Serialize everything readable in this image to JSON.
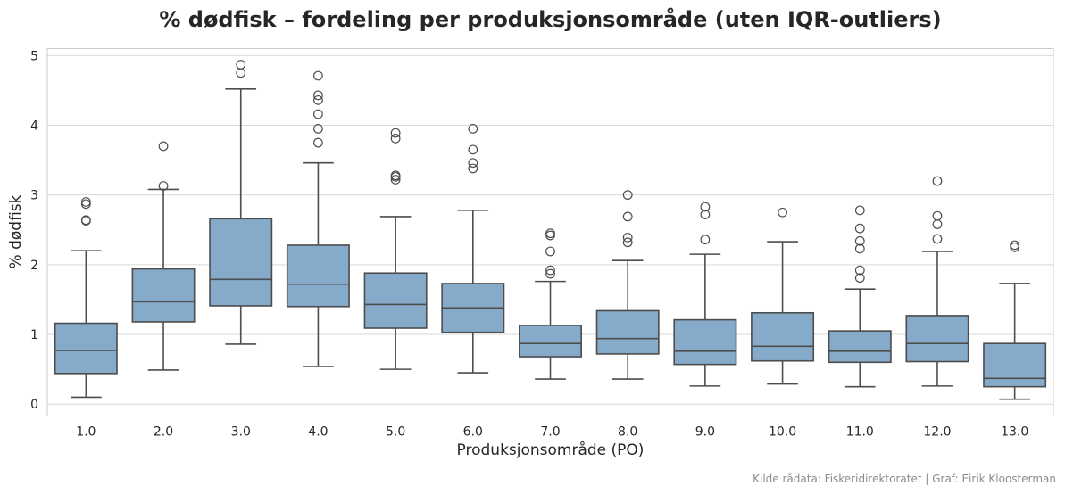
{
  "chart_data": {
    "type": "boxplot",
    "title": "% dødfisk – fordeling per produksjonsområde (uten IQR-outliers)",
    "xlabel": "Produksjonsområde (PO)",
    "ylabel": "% dødfisk",
    "source": "Kilde rådata: Fiskeridirektoratet | Graf: Eirik Kloosterman",
    "ylim": [
      -0.17,
      5.1
    ],
    "yticks": [
      0,
      1,
      2,
      3,
      4,
      5
    ],
    "grid": true,
    "box_color": "#86aac9",
    "edge_color": "#4d4d4d",
    "grid_color": "#d9d9d9",
    "categories": [
      "1.0",
      "2.0",
      "3.0",
      "4.0",
      "5.0",
      "6.0",
      "7.0",
      "8.0",
      "9.0",
      "10.0",
      "11.0",
      "12.0",
      "13.0"
    ],
    "boxes": [
      {
        "category": "1.0",
        "whisker_low": 0.1,
        "q1": 0.44,
        "median": 0.77,
        "q3": 1.16,
        "whisker_high": 2.2,
        "outliers": [
          2.63,
          2.64,
          2.87,
          2.9
        ]
      },
      {
        "category": "2.0",
        "whisker_low": 0.49,
        "q1": 1.18,
        "median": 1.47,
        "q3": 1.94,
        "whisker_high": 3.08,
        "outliers": [
          3.13,
          3.7
        ]
      },
      {
        "category": "3.0",
        "whisker_low": 0.86,
        "q1": 1.41,
        "median": 1.79,
        "q3": 2.66,
        "whisker_high": 4.52,
        "outliers": [
          4.75,
          4.87
        ]
      },
      {
        "category": "4.0",
        "whisker_low": 0.54,
        "q1": 1.4,
        "median": 1.72,
        "q3": 2.28,
        "whisker_high": 3.46,
        "outliers": [
          3.75,
          3.95,
          4.16,
          4.36,
          4.43,
          4.71
        ]
      },
      {
        "category": "5.0",
        "whisker_low": 0.5,
        "q1": 1.09,
        "median": 1.43,
        "q3": 1.88,
        "whisker_high": 2.69,
        "outliers": [
          3.22,
          3.26,
          3.28,
          3.81,
          3.89
        ]
      },
      {
        "category": "6.0",
        "whisker_low": 0.45,
        "q1": 1.03,
        "median": 1.38,
        "q3": 1.73,
        "whisker_high": 2.78,
        "outliers": [
          3.38,
          3.46,
          3.65,
          3.95
        ]
      },
      {
        "category": "7.0",
        "whisker_low": 0.36,
        "q1": 0.68,
        "median": 0.87,
        "q3": 1.13,
        "whisker_high": 1.76,
        "outliers": [
          1.87,
          1.92,
          2.19,
          2.42,
          2.45
        ]
      },
      {
        "category": "8.0",
        "whisker_low": 0.36,
        "q1": 0.72,
        "median": 0.94,
        "q3": 1.34,
        "whisker_high": 2.06,
        "outliers": [
          2.32,
          2.39,
          2.69,
          3.0
        ]
      },
      {
        "category": "9.0",
        "whisker_low": 0.26,
        "q1": 0.57,
        "median": 0.76,
        "q3": 1.21,
        "whisker_high": 2.15,
        "outliers": [
          2.36,
          2.72,
          2.83
        ]
      },
      {
        "category": "10.0",
        "whisker_low": 0.29,
        "q1": 0.62,
        "median": 0.83,
        "q3": 1.31,
        "whisker_high": 2.33,
        "outliers": [
          2.75
        ]
      },
      {
        "category": "11.0",
        "whisker_low": 0.25,
        "q1": 0.6,
        "median": 0.76,
        "q3": 1.05,
        "whisker_high": 1.65,
        "outliers": [
          1.81,
          1.92,
          2.23,
          2.34,
          2.52,
          2.78
        ]
      },
      {
        "category": "12.0",
        "whisker_low": 0.26,
        "q1": 0.61,
        "median": 0.87,
        "q3": 1.27,
        "whisker_high": 2.19,
        "outliers": [
          2.37,
          2.58,
          2.7,
          3.2
        ]
      },
      {
        "category": "13.0",
        "whisker_low": 0.07,
        "q1": 0.25,
        "median": 0.37,
        "q3": 0.87,
        "whisker_high": 1.73,
        "outliers": [
          2.25,
          2.28
        ]
      }
    ]
  }
}
